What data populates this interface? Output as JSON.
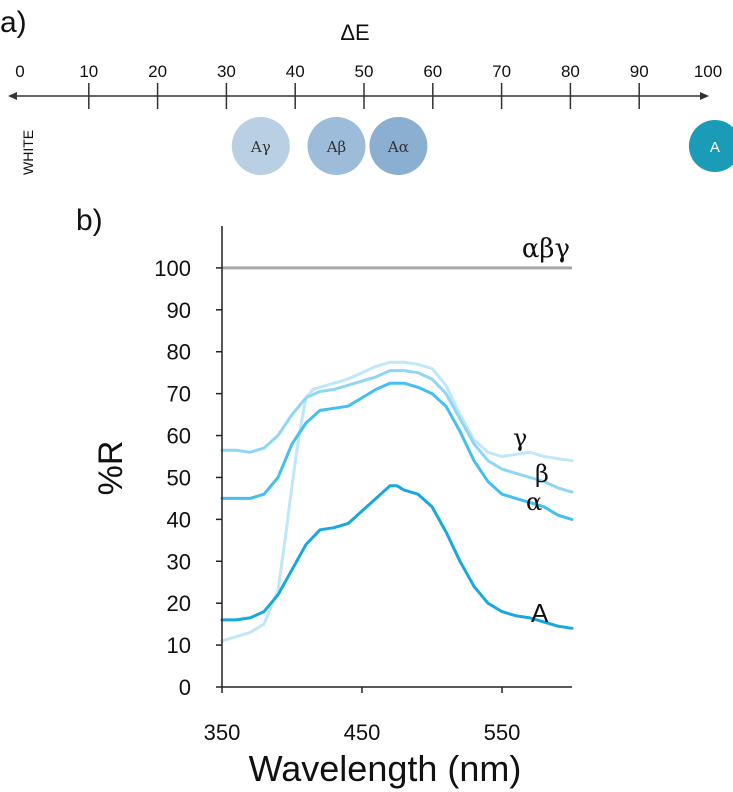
{
  "panel_a": {
    "label": "a)",
    "title": "ΔE",
    "ticks": [
      "0",
      "10",
      "20",
      "30",
      "40",
      "50",
      "60",
      "70",
      "80",
      "90",
      "100"
    ],
    "tick_values": [
      0,
      10,
      20,
      30,
      40,
      50,
      60,
      70,
      80,
      90,
      100
    ],
    "white_label": "WHITE",
    "circles": [
      {
        "label": "Aγ",
        "delta_e": 35,
        "color": "#b9cfe3"
      },
      {
        "label": "Aβ",
        "delta_e": 46,
        "color": "#9cbcda"
      },
      {
        "label": "Aα",
        "delta_e": 55,
        "color": "#8aafd1"
      },
      {
        "label": "A",
        "delta_e": 101,
        "color": "#1a9bb8"
      }
    ]
  },
  "panel_b": {
    "label": "b)"
  },
  "chart_data": {
    "type": "line",
    "xlabel": "Wavelength (nm)",
    "ylabel": "%R",
    "xlim": [
      350,
      600
    ],
    "ylim": [
      0,
      110
    ],
    "x_ticks": [
      "350",
      "450",
      "550"
    ],
    "x_tick_values": [
      350,
      450,
      550
    ],
    "y_ticks": [
      "0",
      "10",
      "20",
      "30",
      "40",
      "50",
      "60",
      "70",
      "80",
      "90",
      "100"
    ],
    "y_tick_values": [
      0,
      10,
      20,
      30,
      40,
      50,
      60,
      70,
      80,
      90,
      100
    ],
    "grid": false,
    "reference": {
      "name": "αβγ",
      "y": 100,
      "color": "#a6a6a6"
    },
    "series": [
      {
        "name": "A",
        "color": "#18a8e0",
        "width": 3,
        "x": [
          350,
          360,
          370,
          380,
          390,
          400,
          410,
          420,
          430,
          440,
          450,
          460,
          470,
          475,
          480,
          490,
          500,
          510,
          520,
          530,
          540,
          550,
          560,
          570,
          580,
          590,
          600
        ],
        "y": [
          16,
          16,
          16.5,
          18,
          22,
          28,
          34,
          37.5,
          38,
          39,
          42,
          45,
          48,
          48,
          47,
          46,
          43,
          37,
          30,
          24,
          20,
          18,
          17,
          16.5,
          15.5,
          14.5,
          14
        ]
      },
      {
        "name": "α",
        "color": "#45bff0",
        "width": 3,
        "x": [
          350,
          360,
          370,
          380,
          390,
          400,
          410,
          420,
          430,
          440,
          450,
          460,
          470,
          480,
          490,
          500,
          510,
          520,
          530,
          540,
          550,
          560,
          570,
          580,
          590,
          600
        ],
        "y": [
          45,
          45,
          45,
          46,
          50,
          58,
          63,
          66,
          66.5,
          67,
          69,
          71,
          72.5,
          72.5,
          71.5,
          70,
          67,
          61,
          54,
          49,
          46,
          45,
          44,
          43,
          41,
          40
        ]
      },
      {
        "name": "β",
        "color": "#8fd6f5",
        "width": 3,
        "x": [
          350,
          360,
          370,
          380,
          390,
          400,
          410,
          420,
          430,
          440,
          450,
          460,
          470,
          480,
          490,
          500,
          510,
          520,
          530,
          540,
          550,
          560,
          570,
          580,
          590,
          600
        ],
        "y": [
          56.5,
          56.5,
          56,
          57,
          60,
          65,
          69,
          70.5,
          71,
          72,
          73,
          74,
          75.5,
          75.5,
          75,
          73.5,
          70,
          64,
          58,
          54,
          52,
          51,
          50,
          49,
          47.5,
          46.5
        ]
      },
      {
        "name": "γ",
        "color": "#bfe7fa",
        "width": 3,
        "x": [
          350,
          360,
          370,
          380,
          390,
          395,
          400,
          405,
          410,
          415,
          420,
          430,
          440,
          450,
          460,
          470,
          480,
          490,
          500,
          510,
          520,
          530,
          540,
          550,
          560,
          570,
          580,
          590,
          600
        ],
        "y": [
          11,
          12,
          13,
          15,
          23,
          35,
          48,
          60,
          69,
          71,
          71.5,
          72.5,
          73.5,
          75,
          76.5,
          77.5,
          77.5,
          77,
          76,
          72,
          65,
          59,
          56,
          55,
          55.5,
          56,
          55,
          54.5,
          54
        ]
      }
    ]
  }
}
